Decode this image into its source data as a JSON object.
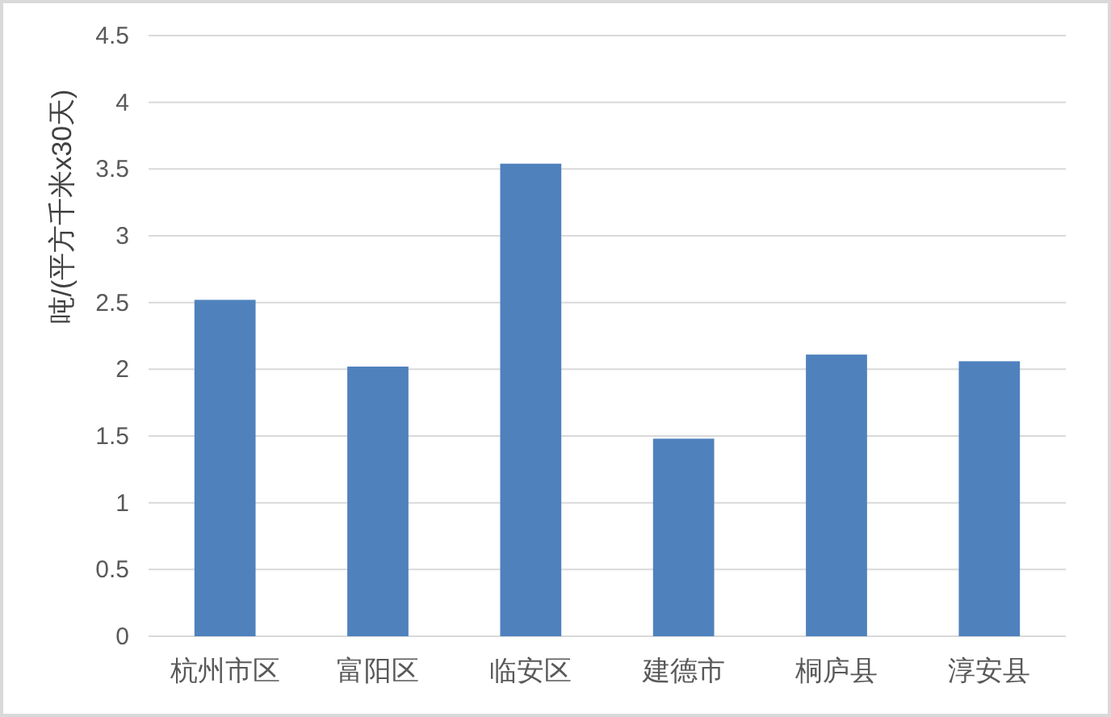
{
  "chart_data": {
    "type": "bar",
    "ylabel": "吨/(平方千米x30天)",
    "categories": [
      "杭州市区",
      "富阳区",
      "临安区",
      "建德市",
      "桐庐县",
      "淳安县"
    ],
    "values": [
      2.52,
      2.02,
      3.54,
      1.48,
      2.11,
      2.06
    ],
    "color": "#4f81bd",
    "ylim": [
      0,
      4.5
    ],
    "yticks": [
      0,
      0.5,
      1,
      1.5,
      2,
      2.5,
      3,
      3.5,
      4,
      4.5
    ],
    "grid": "y"
  }
}
